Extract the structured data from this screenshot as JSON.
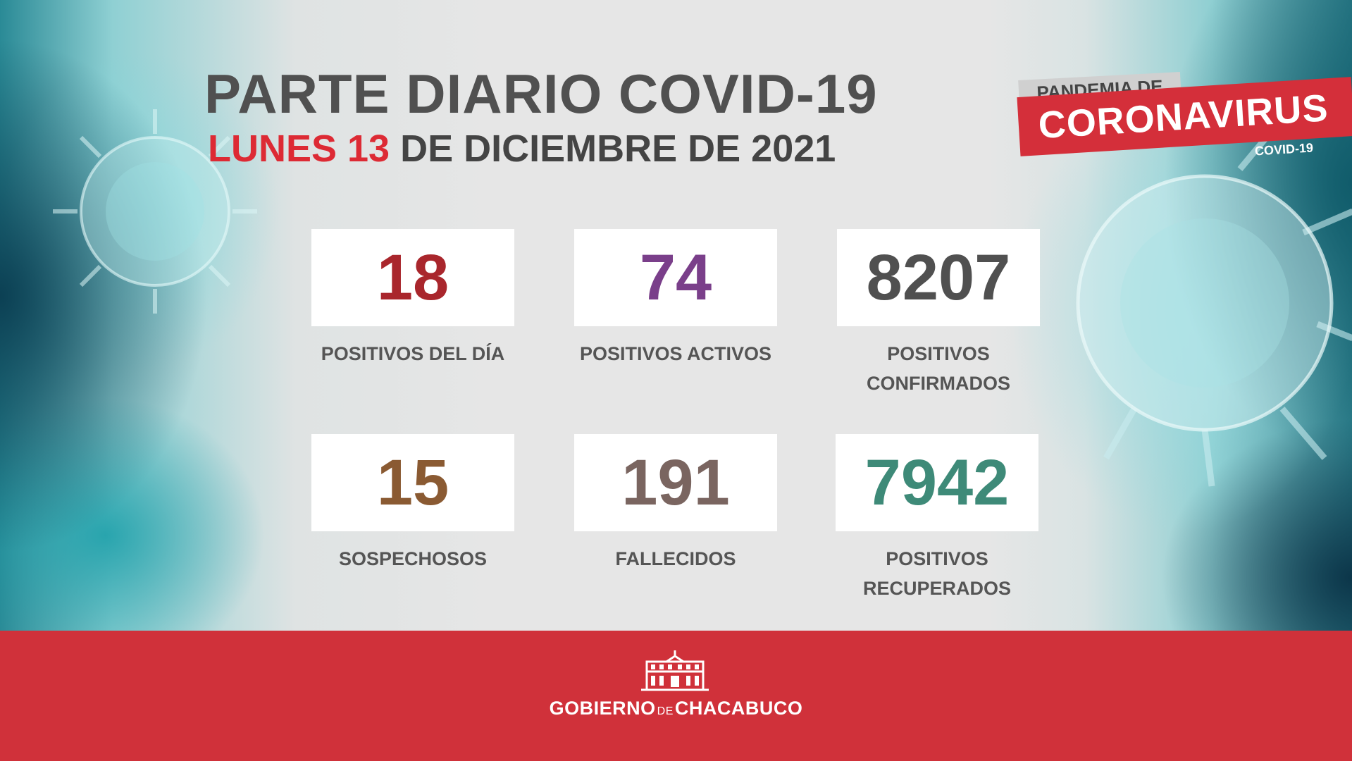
{
  "header": {
    "title": "PARTE DIARIO COVID-19",
    "date_day_red": "LUNES 13",
    "date_rest": "DE DICIEMBRE DE 2021"
  },
  "badge": {
    "top": "PANDEMIA DE",
    "main": "CORONAVIRUS",
    "sub": "COVID-19"
  },
  "stats": [
    {
      "value": "18",
      "label": "POSITIVOS DEL DÍA",
      "color": "#a9262c"
    },
    {
      "value": "74",
      "label": "POSITIVOS ACTIVOS",
      "color": "#7a3f8a"
    },
    {
      "value": "8207",
      "label_line1": "POSITIVOS",
      "label_line2": "CONFIRMADOS",
      "color": "#505050"
    },
    {
      "value": "15",
      "label": "SOSPECHOSOS",
      "color": "#8a5a32"
    },
    {
      "value": "191",
      "label": "FALLECIDOS",
      "color": "#7a6560"
    },
    {
      "value": "7942",
      "label_line1": "POSITIVOS",
      "label_line2": "RECUPERADOS",
      "color": "#3e8a78"
    }
  ],
  "footer": {
    "logo_part1": "GOBIERNO",
    "logo_part2": "DE",
    "logo_part3": "CHACABUCO",
    "logo_icon": "government-building-icon"
  },
  "colors": {
    "accent_red": "#dd2a34",
    "footer_red": "#d0313a",
    "title_gray": "#505050"
  }
}
